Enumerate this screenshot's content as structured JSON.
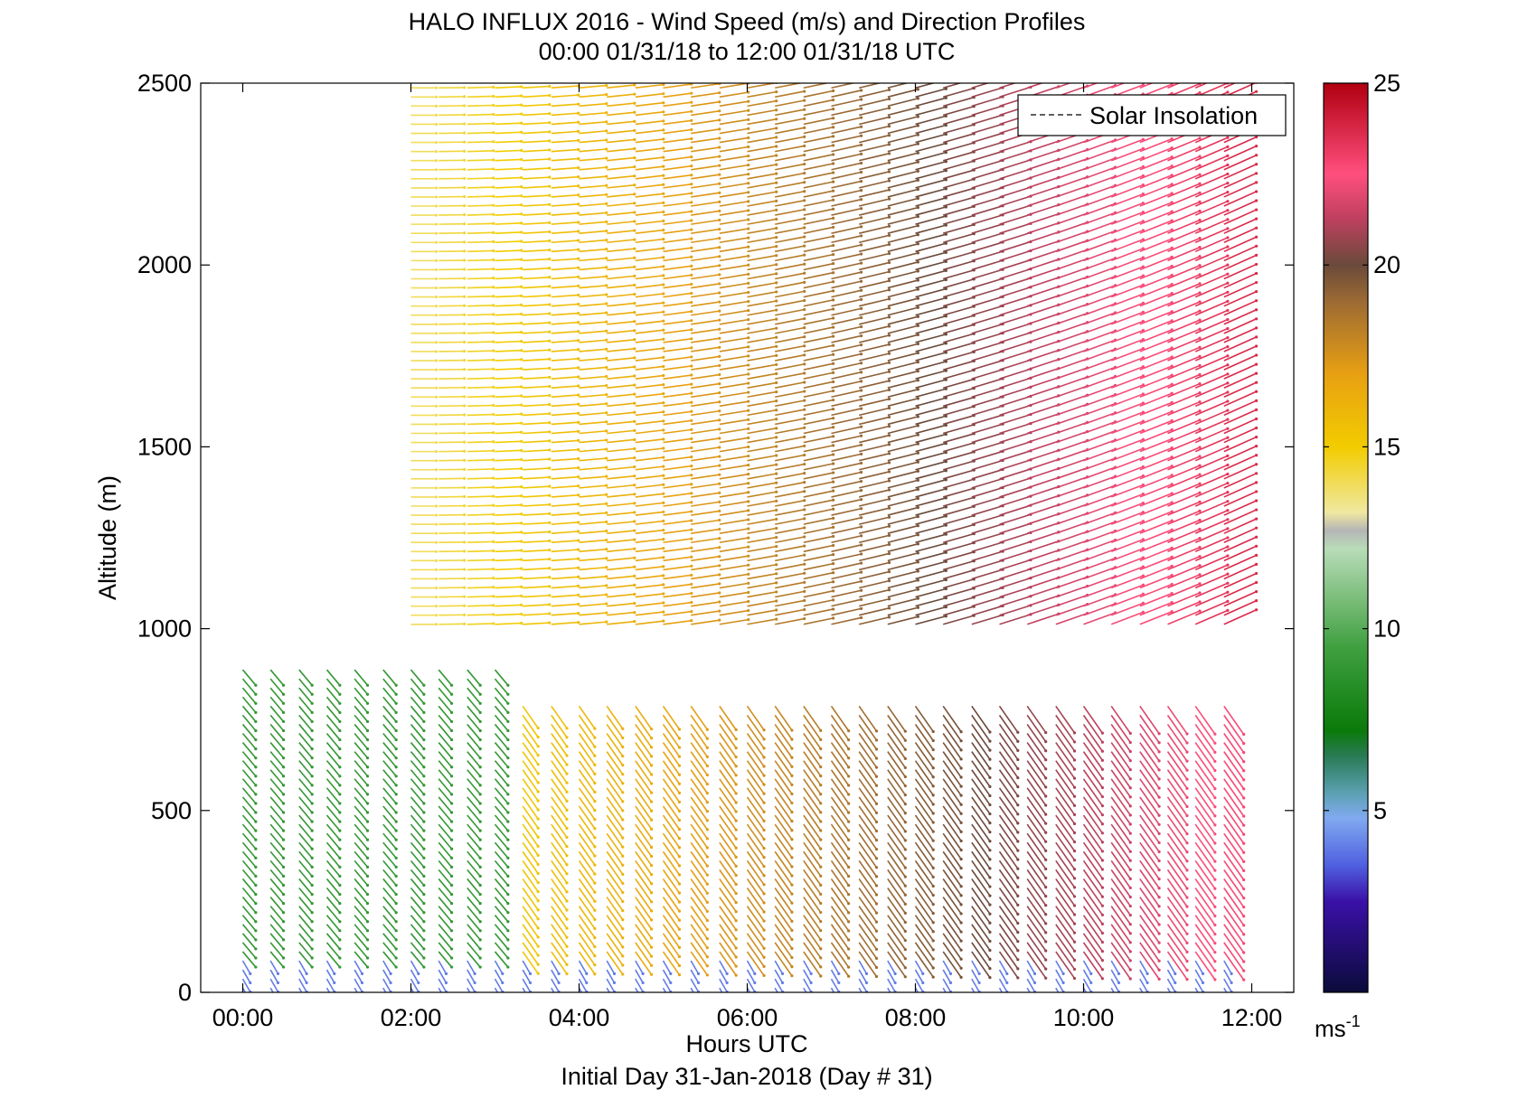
{
  "chart_data": {
    "type": "barbs",
    "title": "HALO INFLUX 2016 - Wind Speed (m/s) and Direction Profiles",
    "subtitle": "00:00 01/31/18 to 12:00 01/31/18  UTC",
    "xlabel": "Hours UTC",
    "xlabel2": "Initial Day 31-Jan-2018 (Day # 31)",
    "ylabel": "Altitude (m)",
    "xlim": [
      -0.5,
      12.5
    ],
    "ylim": [
      0,
      2500
    ],
    "x_ticks": [
      {
        "value": 0,
        "label": "00:00"
      },
      {
        "value": 2,
        "label": "02:00"
      },
      {
        "value": 4,
        "label": "04:00"
      },
      {
        "value": 6,
        "label": "06:00"
      },
      {
        "value": 8,
        "label": "08:00"
      },
      {
        "value": 10,
        "label": "10:00"
      },
      {
        "value": 12,
        "label": "12:00"
      }
    ],
    "y_ticks": [
      {
        "value": 0,
        "label": "0"
      },
      {
        "value": 500,
        "label": "500"
      },
      {
        "value": 1000,
        "label": "1000"
      },
      {
        "value": 1500,
        "label": "1500"
      },
      {
        "value": 2000,
        "label": "2000"
      },
      {
        "value": 2500,
        "label": "2500"
      }
    ],
    "legend": {
      "entries": [
        "Solar Insolation"
      ],
      "style": "dashed",
      "position": "top-right"
    },
    "colorbar": {
      "range": [
        0,
        25
      ],
      "ticks": [
        {
          "value": 5,
          "label": "5"
        },
        {
          "value": 10,
          "label": "10"
        },
        {
          "value": 15,
          "label": "15"
        },
        {
          "value": 20,
          "label": "20"
        },
        {
          "value": 25,
          "label": "25"
        }
      ],
      "unit_base": "ms",
      "unit_exp": "-1",
      "stops": [
        {
          "v": 0,
          "c": "#0b0b3a"
        },
        {
          "v": 2.5,
          "c": "#3a10a8"
        },
        {
          "v": 3.5,
          "c": "#5060e0"
        },
        {
          "v": 4.8,
          "c": "#80aaf0"
        },
        {
          "v": 5.5,
          "c": "#5aa0b0"
        },
        {
          "v": 6.5,
          "c": "#2a7a55"
        },
        {
          "v": 7.2,
          "c": "#0a7a0a"
        },
        {
          "v": 9.5,
          "c": "#40a040"
        },
        {
          "v": 12.2,
          "c": "#b8dcb8"
        },
        {
          "v": 12.7,
          "c": "#b5b5b5"
        },
        {
          "v": 13.2,
          "c": "#f0e8a0"
        },
        {
          "v": 15,
          "c": "#f2cc00"
        },
        {
          "v": 17,
          "c": "#e8a012"
        },
        {
          "v": 19,
          "c": "#9c6a34"
        },
        {
          "v": 20,
          "c": "#6a4a3a"
        },
        {
          "v": 21.3,
          "c": "#c04060"
        },
        {
          "v": 22.5,
          "c": "#ff4f7e"
        },
        {
          "v": 25,
          "c": "#b00010"
        }
      ]
    },
    "times": [
      0,
      0.33,
      0.67,
      1.0,
      1.33,
      1.67,
      2.0,
      2.33,
      2.67,
      3.0,
      3.33,
      3.67,
      4.0,
      4.33,
      4.67,
      5.0,
      5.33,
      5.67,
      6.0,
      6.33,
      6.67,
      7.0,
      7.33,
      7.67,
      8.0,
      8.33,
      8.67,
      9.0,
      9.33,
      9.67,
      10.0,
      10.33,
      10.67,
      11.0,
      11.33,
      11.67
    ],
    "altitude_spacing_m": 25,
    "wind_regimes": [
      {
        "description": "surface layer",
        "altitude_m": [
          0,
          100
        ],
        "speed_ms": 4,
        "direction_deg": 330
      },
      {
        "description": "boundary layer, 00:00-03:00",
        "time_h": [
          0,
          3
        ],
        "altitude_m": [
          100,
          900
        ],
        "speed_ms": 9,
        "direction_deg": 320
      },
      {
        "description": "boundary layer, 03:00-12:00",
        "time_h": [
          3,
          12
        ],
        "altitude_m": [
          100,
          800
        ],
        "speed_ms": [
          15,
          23
        ],
        "direction_deg": 325
      },
      {
        "description": "upper layer",
        "time_h": [
          2,
          12
        ],
        "altitude_m": [
          1000,
          2500
        ],
        "speed_ms": [
          14,
          24
        ],
        "direction_deg": [
          270,
          245
        ]
      }
    ]
  }
}
